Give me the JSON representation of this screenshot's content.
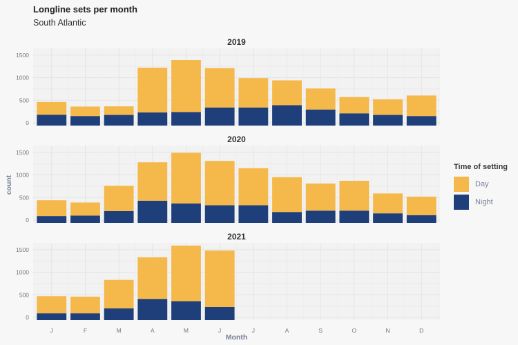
{
  "title": "Longline sets per month",
  "subtitle": "South Atlantic",
  "legend": {
    "title": "Time of setting",
    "items": [
      {
        "label": "Day",
        "color": "#f5b84a"
      },
      {
        "label": "Night",
        "color": "#1f3f7a"
      }
    ]
  },
  "chart_data": {
    "type": "bar",
    "stacked": true,
    "xlabel": "Month",
    "ylabel": "count",
    "ylim": [
      0,
      1650
    ],
    "yticks": [
      0,
      500,
      1000,
      1500
    ],
    "categories": [
      "J",
      "F",
      "M",
      "A",
      "M",
      "J",
      "J",
      "A",
      "S",
      "O",
      "N",
      "D"
    ],
    "panels": [
      {
        "name": "2019",
        "series": [
          {
            "name": "Night",
            "values": [
              180,
              150,
              175,
              230,
              240,
              340,
              340,
              390,
              295,
              210,
              175,
              150
            ]
          },
          {
            "name": "Day",
            "values": [
              280,
              210,
              190,
              990,
              1150,
              870,
              650,
              550,
              465,
              360,
              345,
              455
            ]
          }
        ]
      },
      {
        "name": "2020",
        "series": [
          {
            "name": "Night",
            "values": [
              90,
              100,
              200,
              430,
              370,
              330,
              330,
              180,
              210,
              210,
              150,
              110
            ]
          },
          {
            "name": "Day",
            "values": [
              350,
              290,
              560,
              850,
              1120,
              980,
              820,
              770,
              600,
              660,
              440,
              410
            ]
          }
        ]
      },
      {
        "name": "2021",
        "series": [
          {
            "name": "Night",
            "values": [
              90,
              90,
              200,
              410,
              360,
              230
            ]
          },
          {
            "name": "Day",
            "values": [
              380,
              370,
              630,
              920,
              1230,
              1250
            ]
          }
        ]
      }
    ]
  }
}
